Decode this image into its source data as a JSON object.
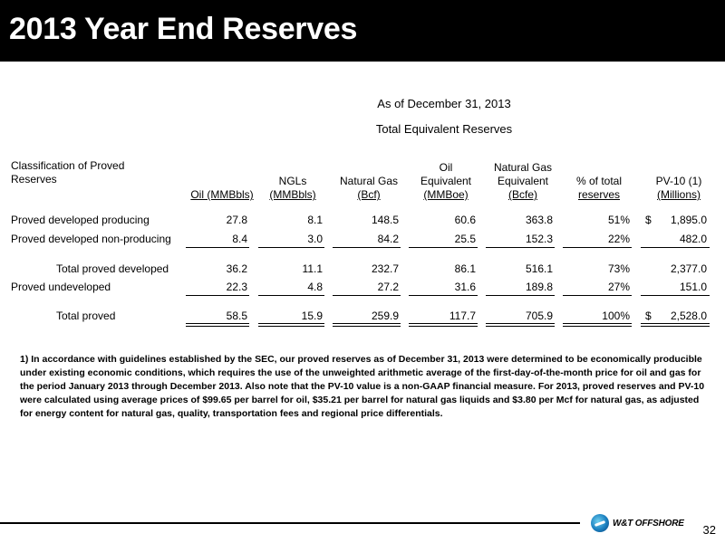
{
  "title": "2013 Year End Reserves",
  "subtitle_date": "As of December 31, 2013",
  "subtitle_table": "Total Equivalent Reserves",
  "headers": {
    "classification": [
      "Classification of Proved",
      "Reserves"
    ],
    "oil": [
      "Oil (MMBbls)"
    ],
    "ngls": [
      "NGLs",
      "(MMBbls)"
    ],
    "natgas": [
      "Natural Gas",
      "(Bcf)"
    ],
    "oil_equiv": [
      "Oil",
      "Equivalent",
      "(MMBoe)"
    ],
    "gas_equiv": [
      "Natural Gas",
      "Equivalent",
      "(Bcfe)"
    ],
    "pct": [
      "% of total",
      "reserves"
    ],
    "pv10": [
      "PV-10 (1)",
      "(Millions)"
    ]
  },
  "rows": [
    {
      "label": "Proved developed producing",
      "oil": "27.8",
      "ngls": "8.1",
      "natgas": "148.5",
      "oil_equiv": "60.6",
      "gas_equiv": "363.8",
      "pct": "51%",
      "dollar": "$",
      "pv10": "1,895.0"
    },
    {
      "label": "Proved developed non-producing",
      "oil": "8.4",
      "ngls": "3.0",
      "natgas": "84.2",
      "oil_equiv": "25.5",
      "gas_equiv": "152.3",
      "pct": "22%",
      "dollar": "",
      "pv10": "482.0"
    },
    {
      "label": "Total proved developed",
      "oil": "36.2",
      "ngls": "11.1",
      "natgas": "232.7",
      "oil_equiv": "86.1",
      "gas_equiv": "516.1",
      "pct": "73%",
      "dollar": "",
      "pv10": "2,377.0"
    },
    {
      "label": "Proved undeveloped",
      "oil": "22.3",
      "ngls": "4.8",
      "natgas": "27.2",
      "oil_equiv": "31.6",
      "gas_equiv": "189.8",
      "pct": "27%",
      "dollar": "",
      "pv10": "151.0"
    },
    {
      "label": "Total proved",
      "oil": "58.5",
      "ngls": "15.9",
      "natgas": "259.9",
      "oil_equiv": "117.7",
      "gas_equiv": "705.9",
      "pct": "100%",
      "dollar": "$",
      "pv10": "2,528.0"
    }
  ],
  "footnote": "1)  In accordance with guidelines established by the SEC, our proved reserves as of December 31, 2013 were determined to be economically producible under existing economic conditions, which requires the use of the unweighted arithmetic average of the first-day-of-the-month price for oil and gas for the period January 2013 through December 2013.  Also note that the PV-10 value is a non-GAAP financial measure. For 2013, proved reserves and PV-10 were calculated using average prices of $99.65 per barrel for oil, $35.21 per barrel for natural gas liquids and $3.80 per Mcf for natural gas, as adjusted for energy content for natural gas, quality, transportation fees and regional price differentials.",
  "logo_text": "W&T OFFSHORE",
  "page_number": "32"
}
